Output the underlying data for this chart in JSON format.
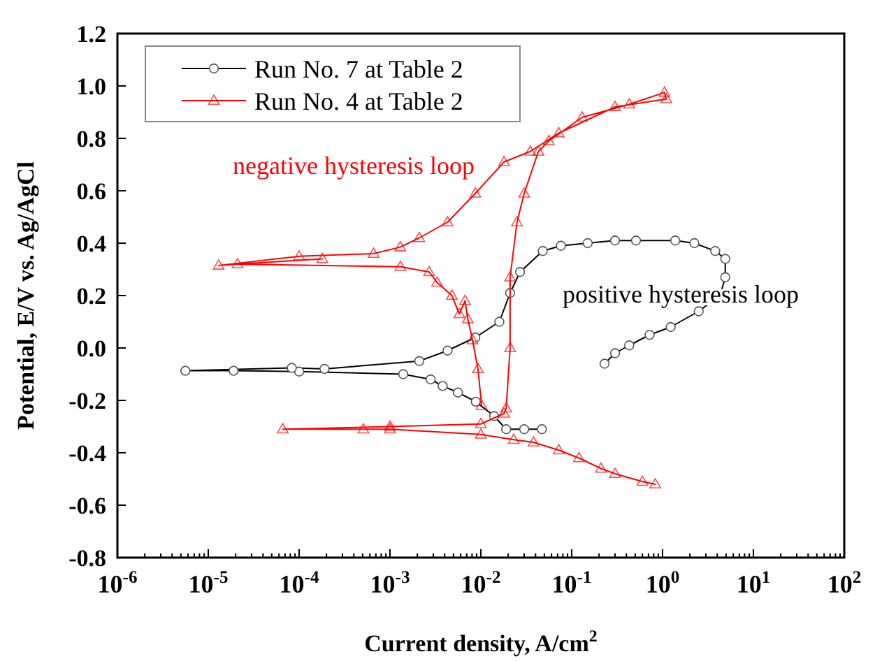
{
  "chart_data": {
    "type": "line",
    "xlabel": "Current density, A/cm$^{2}$",
    "ylabel": "Potential, E/V vs. Ag/AgCl",
    "log": "x",
    "xlim": [
      1e-06,
      100
    ],
    "ylim": [
      -0.8,
      1.2
    ],
    "xticks": [
      {
        "value": 1e-06,
        "label": "10$^{-6}$"
      },
      {
        "value": 2e-06,
        "label": null
      },
      {
        "value": 3e-06,
        "label": null
      },
      {
        "value": 4e-06,
        "label": null
      },
      {
        "value": 5e-06,
        "label": null
      },
      {
        "value": 6e-06,
        "label": null
      },
      {
        "value": 7e-06,
        "label": null
      },
      {
        "value": 8e-06,
        "label": null
      },
      {
        "value": 9e-06,
        "label": null
      },
      {
        "value": 1e-05,
        "label": "10$^{-5}$"
      },
      {
        "value": 2e-05,
        "label": null
      },
      {
        "value": 3e-05,
        "label": null
      },
      {
        "value": 4e-05,
        "label": null
      },
      {
        "value": 5e-05,
        "label": null
      },
      {
        "value": 6e-05,
        "label": null
      },
      {
        "value": 7e-05,
        "label": null
      },
      {
        "value": 8e-05,
        "label": null
      },
      {
        "value": 9e-05,
        "label": null
      },
      {
        "value": 0.0001,
        "label": "10$^{-4}$"
      },
      {
        "value": 0.0002,
        "label": null
      },
      {
        "value": 0.0003,
        "label": null
      },
      {
        "value": 0.0004,
        "label": null
      },
      {
        "value": 0.0005,
        "label": null
      },
      {
        "value": 0.0006,
        "label": null
      },
      {
        "value": 0.0007,
        "label": null
      },
      {
        "value": 0.0008,
        "label": null
      },
      {
        "value": 0.0009,
        "label": null
      },
      {
        "value": 0.001,
        "label": "10$^{-3}$"
      },
      {
        "value": 0.002,
        "label": null
      },
      {
        "value": 0.003,
        "label": null
      },
      {
        "value": 0.004,
        "label": null
      },
      {
        "value": 0.005,
        "label": null
      },
      {
        "value": 0.006,
        "label": null
      },
      {
        "value": 0.007,
        "label": null
      },
      {
        "value": 0.008,
        "label": null
      },
      {
        "value": 0.009,
        "label": null
      },
      {
        "value": 0.01,
        "label": "10$^{-2}$"
      },
      {
        "value": 0.02,
        "label": null
      },
      {
        "value": 0.03,
        "label": null
      },
      {
        "value": 0.04,
        "label": null
      },
      {
        "value": 0.05,
        "label": null
      },
      {
        "value": 0.06,
        "label": null
      },
      {
        "value": 0.07,
        "label": null
      },
      {
        "value": 0.08,
        "label": null
      },
      {
        "value": 0.09,
        "label": null
      },
      {
        "value": 0.1,
        "label": "10$^{-1}$"
      },
      {
        "value": 0.2,
        "label": null
      },
      {
        "value": 0.3,
        "label": null
      },
      {
        "value": 0.4,
        "label": null
      },
      {
        "value": 0.5,
        "label": null
      },
      {
        "value": 0.6,
        "label": null
      },
      {
        "value": 0.7,
        "label": null
      },
      {
        "value": 0.8,
        "label": null
      },
      {
        "value": 0.9,
        "label": null
      },
      {
        "value": 1,
        "label": "10$^{0}$"
      },
      {
        "value": 2,
        "label": null
      },
      {
        "value": 3,
        "label": null
      },
      {
        "value": 4,
        "label": null
      },
      {
        "value": 5,
        "label": null
      },
      {
        "value": 6,
        "label": null
      },
      {
        "value": 7,
        "label": null
      },
      {
        "value": 8,
        "label": null
      },
      {
        "value": 9,
        "label": null
      },
      {
        "value": 10,
        "label": "10$^{1}$"
      },
      {
        "value": 20,
        "label": null
      },
      {
        "value": 30,
        "label": null
      },
      {
        "value": 40,
        "label": null
      },
      {
        "value": 50,
        "label": null
      },
      {
        "value": 60,
        "label": null
      },
      {
        "value": 70,
        "label": null
      },
      {
        "value": 80,
        "label": null
      },
      {
        "value": 90,
        "label": null
      },
      {
        "value": 100,
        "label": "10$^{2}$"
      }
    ],
    "yticks": [
      {
        "value": -0.8,
        "label": "-0.8"
      },
      {
        "value": -0.6,
        "label": "-0.6"
      },
      {
        "value": -0.4,
        "label": "-0.4"
      },
      {
        "value": -0.2,
        "label": "-0.2"
      },
      {
        "value": 0,
        "label": "0.0"
      },
      {
        "value": 0.2,
        "label": "0.2"
      },
      {
        "value": 0.4,
        "label": "0.4"
      },
      {
        "value": 0.6,
        "label": "0.6"
      },
      {
        "value": 0.8,
        "label": "0.8"
      },
      {
        "value": 1,
        "label": "1.0"
      },
      {
        "value": 1.2,
        "label": "1.2"
      }
    ],
    "legend": "top left",
    "grid": false,
    "series": [
      {
        "name": "Run No. 7 at Table 2",
        "color": "#000000",
        "marker": "circle",
        "x": [
          0.047,
          0.03,
          0.019,
          0.014,
          0.0088,
          0.0056,
          0.0038,
          0.0028,
          0.0014,
          0.0001,
          1.9e-05,
          5.6e-06,
          8.3e-05,
          0.00019,
          0.0021,
          0.0043,
          0.0087,
          0.016,
          0.021,
          0.027,
          0.048,
          0.076,
          0.15,
          0.3,
          0.51,
          1.38,
          2.24,
          3.8,
          4.9,
          4.9,
          4.3,
          2.5,
          1.23,
          0.72,
          0.43,
          0.3,
          0.23
        ],
        "values": [
          -0.31,
          -0.31,
          -0.31,
          -0.26,
          -0.205,
          -0.17,
          -0.145,
          -0.12,
          -0.1,
          -0.09,
          -0.087,
          -0.087,
          -0.076,
          -0.08,
          -0.05,
          -0.01,
          0.04,
          0.1,
          0.21,
          0.29,
          0.37,
          0.39,
          0.4,
          0.41,
          0.41,
          0.41,
          0.4,
          0.37,
          0.34,
          0.27,
          0.2,
          0.14,
          0.08,
          0.05,
          0.01,
          -0.02,
          -0.06
        ]
      },
      {
        "name": "Run No. 4 at Table 2",
        "color": "#ff0000",
        "marker": "triangle",
        "x": [
          0.83,
          0.6,
          0.3,
          0.21,
          0.12,
          0.072,
          0.038,
          0.023,
          0.01,
          0.001,
          0.00051,
          6.6e-05,
          0.001,
          0.01,
          0.018,
          0.019,
          0.021,
          0.021,
          0.025,
          0.03,
          0.043,
          0.056,
          0.13,
          0.43,
          1.05,
          1.1,
          0.3,
          0.072,
          0.035,
          0.018,
          0.0087,
          0.0043,
          0.0021,
          0.0013,
          0.00066,
          0.0001,
          1.3e-05,
          0.00018,
          2.1e-05,
          0.0013,
          0.0027,
          0.0033,
          0.0048,
          0.0058,
          0.0067,
          0.0072,
          0.0081,
          0.0093,
          0.0102
        ],
        "values": [
          -0.52,
          -0.51,
          -0.48,
          -0.46,
          -0.42,
          -0.39,
          -0.36,
          -0.35,
          -0.33,
          -0.31,
          -0.31,
          -0.31,
          -0.3,
          -0.29,
          -0.25,
          -0.23,
          0,
          0.27,
          0.48,
          0.59,
          0.75,
          0.79,
          0.88,
          0.93,
          0.975,
          0.95,
          0.92,
          0.82,
          0.75,
          0.71,
          0.59,
          0.48,
          0.42,
          0.385,
          0.36,
          0.35,
          0.315,
          0.34,
          0.32,
          0.31,
          0.29,
          0.25,
          0.2,
          0.13,
          0.18,
          0.11,
          0.03,
          -0.08,
          -0.22
        ]
      }
    ],
    "annotations": [
      "negative hysteresis loop",
      "positive hysteresis loop"
    ]
  }
}
